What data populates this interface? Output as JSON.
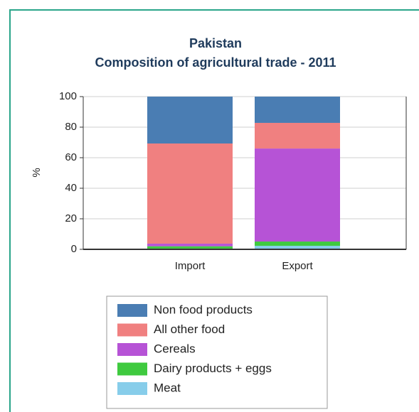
{
  "chart_data": {
    "type": "stacked_bar",
    "title": "Pakistan",
    "subtitle": "Composition of agricultural trade - 2011",
    "y_label": "%",
    "categories": [
      "Import",
      "Export"
    ],
    "series": [
      {
        "name": "Non food products",
        "color": "#4a7db3",
        "values": [
          30.7,
          17.2
        ]
      },
      {
        "name": "All other food",
        "color": "#f08080",
        "values": [
          65.6,
          16.8
        ]
      },
      {
        "name": "Cereals",
        "color": "#b653d6",
        "values": [
          1.7,
          60.9
        ]
      },
      {
        "name": "Dairy products + eggs",
        "color": "#3fca3f",
        "values": [
          1.5,
          2.8
        ]
      },
      {
        "name": "Meat",
        "color": "#87cdea",
        "values": [
          0.5,
          2.3
        ]
      }
    ],
    "ylim": [
      0,
      100
    ],
    "yticks": [
      0,
      20,
      40,
      60,
      80,
      100
    ],
    "grid": true
  }
}
